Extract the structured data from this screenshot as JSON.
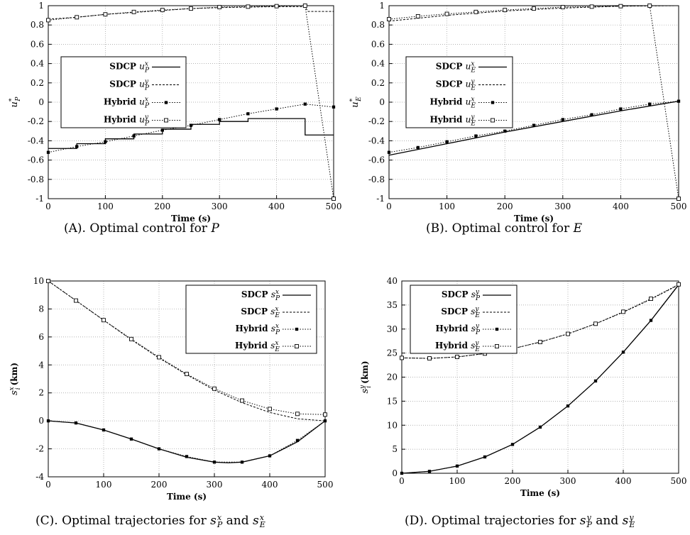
{
  "captions": [
    {
      "label": "(A).",
      "text": "Optimal control for",
      "var": "P"
    },
    {
      "label": "(B).",
      "text": "Optimal control for",
      "var": "E"
    },
    {
      "label": "(C).",
      "text": "Optimal trajectories for",
      "var1": "s_P^x",
      "conj": "and",
      "var2": "s_E^x"
    },
    {
      "label": "(D).",
      "text": "Optimal trajectories for",
      "var1": "s_P^y",
      "conj": "and",
      "var2": "s_E^y"
    }
  ],
  "chart_data": [
    {
      "type": "line",
      "xlabel": "Time (s)",
      "ylabel": {
        "base": "u",
        "sup": "*",
        "sub": "P"
      },
      "xlim": [
        0,
        500
      ],
      "ylim": [
        -1,
        1
      ],
      "xticks": [
        0,
        100,
        200,
        300,
        400,
        500
      ],
      "yticks": [
        -1,
        -0.8,
        -0.6,
        -0.4,
        -0.2,
        0,
        0.2,
        0.4,
        0.6,
        0.8,
        1
      ],
      "grid": true,
      "legend_position": "left",
      "series": [
        {
          "name": "SDCP u_P^x",
          "style": "solid",
          "marker": "none",
          "x": [
            0,
            50,
            50,
            100,
            100,
            150,
            150,
            200,
            200,
            250,
            250,
            300,
            300,
            350,
            350,
            450,
            450,
            500
          ],
          "y": [
            -0.48,
            -0.48,
            -0.43,
            -0.43,
            -0.38,
            -0.38,
            -0.33,
            -0.33,
            -0.28,
            -0.28,
            -0.23,
            -0.23,
            -0.2,
            -0.2,
            -0.17,
            -0.17,
            -0.34,
            -0.34
          ]
        },
        {
          "name": "SDCP u_P^y",
          "style": "dashed",
          "marker": "none",
          "x": [
            0,
            50,
            100,
            150,
            200,
            250,
            300,
            350,
            400,
            450,
            455,
            500
          ],
          "y": [
            0.86,
            0.88,
            0.91,
            0.93,
            0.95,
            0.97,
            0.98,
            0.985,
            0.99,
            0.99,
            0.94,
            0.94
          ]
        },
        {
          "name": "Hybrid u_P^x",
          "style": "dotted",
          "marker": "filled-square",
          "x": [
            0,
            50,
            100,
            150,
            200,
            250,
            300,
            350,
            400,
            450,
            500
          ],
          "y": [
            -0.52,
            -0.46,
            -0.41,
            -0.35,
            -0.29,
            -0.24,
            -0.18,
            -0.12,
            -0.07,
            -0.02,
            -0.05
          ]
        },
        {
          "name": "Hybrid u_P^y",
          "style": "dotted",
          "marker": "open-square",
          "x": [
            0,
            50,
            100,
            150,
            200,
            250,
            300,
            350,
            400,
            450,
            500
          ],
          "y": [
            0.85,
            0.88,
            0.91,
            0.935,
            0.955,
            0.97,
            0.985,
            0.99,
            0.995,
            1.0,
            -1.0
          ]
        }
      ]
    },
    {
      "type": "line",
      "xlabel": "Time (s)",
      "ylabel": {
        "base": "u",
        "sup": "*",
        "sub": "E"
      },
      "xlim": [
        0,
        500
      ],
      "ylim": [
        -1,
        1
      ],
      "xticks": [
        0,
        100,
        200,
        300,
        400,
        500
      ],
      "yticks": [
        -1,
        -0.8,
        -0.6,
        -0.4,
        -0.2,
        0,
        0.2,
        0.4,
        0.6,
        0.8,
        1
      ],
      "grid": true,
      "legend_position": "left",
      "series": [
        {
          "name": "SDCP u_E^x",
          "style": "solid",
          "marker": "none",
          "x": [
            0,
            100,
            200,
            300,
            400,
            500
          ],
          "y": [
            -0.55,
            -0.43,
            -0.31,
            -0.2,
            -0.09,
            0.01
          ]
        },
        {
          "name": "SDCP u_E^y",
          "style": "dashed",
          "marker": "none",
          "x": [
            0,
            100,
            200,
            300,
            400,
            500
          ],
          "y": [
            0.84,
            0.9,
            0.945,
            0.975,
            0.995,
            1.0
          ]
        },
        {
          "name": "Hybrid u_E^x",
          "style": "dotted",
          "marker": "filled-square",
          "x": [
            0,
            50,
            100,
            150,
            200,
            250,
            300,
            350,
            400,
            450,
            500
          ],
          "y": [
            -0.52,
            -0.47,
            -0.41,
            -0.35,
            -0.3,
            -0.24,
            -0.18,
            -0.13,
            -0.07,
            -0.02,
            0.01
          ]
        },
        {
          "name": "Hybrid u_E^y",
          "style": "dotted",
          "marker": "open-square",
          "x": [
            0,
            50,
            100,
            150,
            200,
            250,
            300,
            350,
            400,
            450,
            500
          ],
          "y": [
            0.86,
            0.89,
            0.915,
            0.935,
            0.955,
            0.97,
            0.985,
            0.99,
            0.995,
            1.0,
            -1.0
          ]
        }
      ]
    },
    {
      "type": "line",
      "xlabel": "Time (s)",
      "ylabel": {
        "base": "s",
        "sup": "x",
        "sub": "i",
        "unit": "(km)"
      },
      "xlim": [
        0,
        500
      ],
      "ylim": [
        -4,
        10
      ],
      "xticks": [
        0,
        100,
        200,
        300,
        400,
        500
      ],
      "yticks": [
        -4,
        -2,
        0,
        2,
        4,
        6,
        8,
        10
      ],
      "grid": true,
      "legend_position": "top-right",
      "series": [
        {
          "name": "SDCP s_P^x",
          "style": "solid",
          "marker": "none",
          "x": [
            0,
            50,
            100,
            150,
            200,
            250,
            300,
            325,
            350,
            400,
            450,
            500
          ],
          "y": [
            0,
            -0.15,
            -0.65,
            -1.3,
            -2.0,
            -2.6,
            -2.95,
            -3.0,
            -2.95,
            -2.5,
            -1.5,
            0
          ]
        },
        {
          "name": "SDCP s_E^x",
          "style": "dashed",
          "marker": "none",
          "x": [
            0,
            50,
            100,
            150,
            200,
            250,
            300,
            350,
            400,
            450,
            500
          ],
          "y": [
            10,
            8.6,
            7.2,
            5.8,
            4.5,
            3.3,
            2.2,
            1.3,
            0.6,
            0.15,
            0
          ]
        },
        {
          "name": "Hybrid s_P^x",
          "style": "dotted",
          "marker": "filled-square",
          "x": [
            0,
            50,
            100,
            150,
            200,
            250,
            300,
            350,
            400,
            450,
            500
          ],
          "y": [
            0,
            -0.15,
            -0.65,
            -1.3,
            -2.0,
            -2.55,
            -2.95,
            -2.95,
            -2.5,
            -1.4,
            0
          ]
        },
        {
          "name": "Hybrid s_E^x",
          "style": "dotted",
          "marker": "open-square",
          "x": [
            0,
            50,
            100,
            150,
            200,
            250,
            300,
            350,
            400,
            450,
            500
          ],
          "y": [
            10,
            8.6,
            7.2,
            5.85,
            4.55,
            3.35,
            2.3,
            1.45,
            0.85,
            0.5,
            0.45
          ]
        }
      ]
    },
    {
      "type": "line",
      "xlabel": "Time (s)",
      "ylabel": {
        "base": "s",
        "sup": "y",
        "sub": "i",
        "unit": "(km)"
      },
      "xlim": [
        0,
        500
      ],
      "ylim": [
        0,
        40
      ],
      "xticks": [
        0,
        100,
        200,
        300,
        400,
        500
      ],
      "yticks": [
        0,
        5,
        10,
        15,
        20,
        25,
        30,
        35,
        40
      ],
      "grid": true,
      "legend_position": "top-left",
      "series": [
        {
          "name": "SDCP s_P^y",
          "style": "solid",
          "marker": "none",
          "x": [
            0,
            50,
            100,
            150,
            200,
            250,
            300,
            350,
            400,
            450,
            500
          ],
          "y": [
            0,
            0.4,
            1.5,
            3.4,
            6.0,
            9.6,
            14.0,
            19.2,
            25.2,
            31.8,
            39.2
          ]
        },
        {
          "name": "SDCP s_E^y",
          "style": "dashed",
          "marker": "none",
          "x": [
            0,
            50,
            100,
            150,
            200,
            250,
            300,
            350,
            400,
            450,
            500
          ],
          "y": [
            24,
            23.9,
            24.2,
            24.9,
            25.9,
            27.3,
            29.0,
            31.1,
            33.5,
            36.2,
            39.2
          ]
        },
        {
          "name": "Hybrid s_P^y",
          "style": "dotted",
          "marker": "filled-square",
          "x": [
            0,
            50,
            100,
            150,
            200,
            250,
            300,
            350,
            400,
            450,
            500
          ],
          "y": [
            0,
            0.4,
            1.5,
            3.4,
            6.0,
            9.6,
            14.0,
            19.2,
            25.2,
            31.8,
            39.3
          ]
        },
        {
          "name": "Hybrid s_E^y",
          "style": "dotted",
          "marker": "open-square",
          "x": [
            0,
            50,
            100,
            150,
            200,
            250,
            300,
            350,
            400,
            450,
            500
          ],
          "y": [
            24,
            23.9,
            24.2,
            24.9,
            25.9,
            27.3,
            29.0,
            31.1,
            33.6,
            36.3,
            39.3
          ]
        }
      ]
    }
  ]
}
